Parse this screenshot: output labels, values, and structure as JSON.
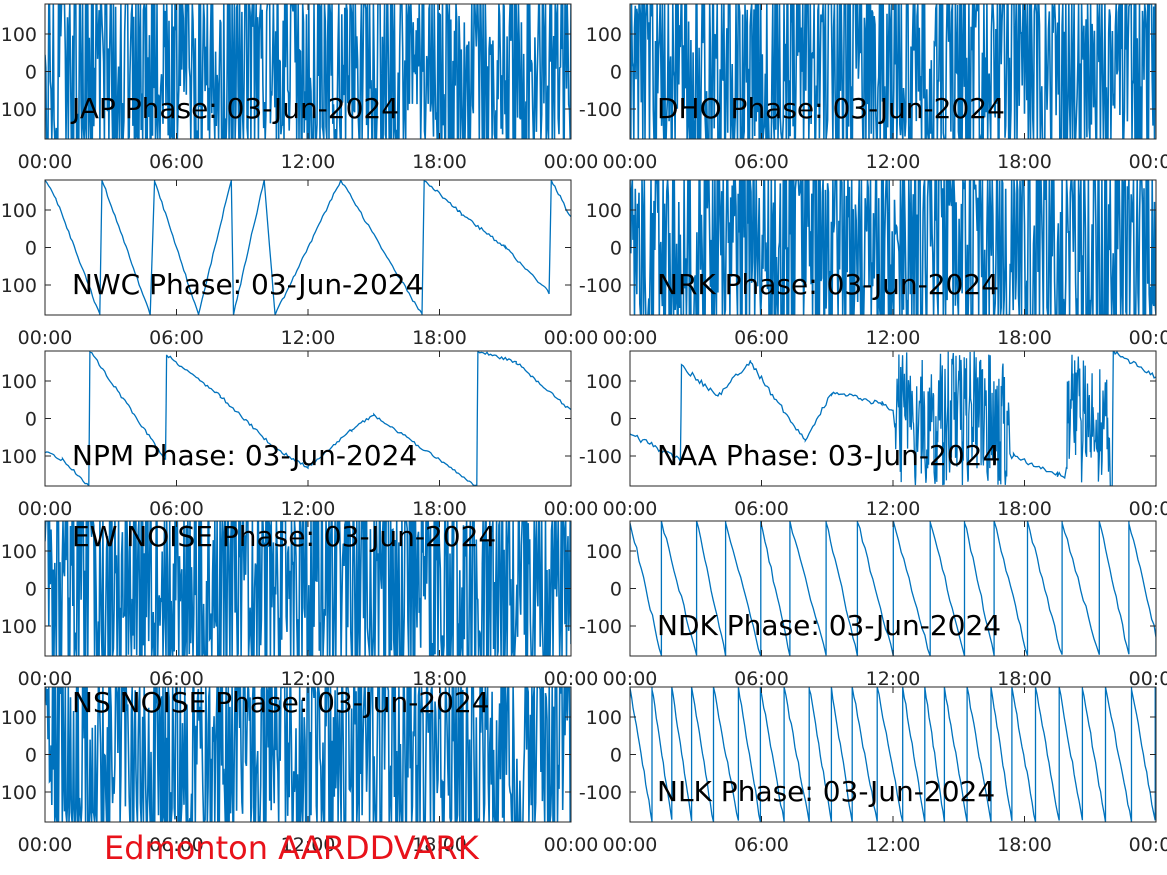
{
  "figure": {
    "caption": "Edmonton AARDDVARK",
    "caption_color": "#e8121a",
    "line_color": "#0072bd",
    "axes_color": "#262626",
    "yticks": [
      -100,
      0,
      100
    ],
    "xticks": [
      "00:00",
      "06:00",
      "12:00",
      "18:00",
      "00:00"
    ]
  },
  "chart_data": [
    {
      "type": "line",
      "label": "JAP Phase: 03-Jun-2024",
      "ylim": [
        -180,
        180
      ],
      "xlim": [
        0,
        24
      ],
      "x": [
        0,
        24
      ],
      "y": [
        0,
        0
      ],
      "pattern": "dense-noise"
    },
    {
      "type": "line",
      "label": "DHO Phase: 03-Jun-2024",
      "ylim": [
        -180,
        180
      ],
      "xlim": [
        0,
        24
      ],
      "x": [
        0,
        24
      ],
      "y": [
        0,
        0
      ],
      "pattern": "dense-noise"
    },
    {
      "type": "line",
      "label": "NWC Phase: 03-Jun-2024",
      "ylim": [
        -180,
        180
      ],
      "xlim": [
        0,
        24
      ],
      "x": [
        0,
        0.5,
        2.5,
        2.6,
        4.8,
        5.0,
        7.0,
        8.5,
        8.6,
        10.0,
        10.5,
        13.5,
        17.2,
        17.3,
        19.0,
        21.0,
        23.0,
        23.1,
        24.0
      ],
      "y": [
        180,
        130,
        -180,
        180,
        -180,
        180,
        -180,
        180,
        -180,
        180,
        -180,
        180,
        -180,
        180,
        90,
        0,
        -120,
        180,
        80
      ],
      "pattern": "sawtooth"
    },
    {
      "type": "line",
      "label": "NRK Phase: 03-Jun-2024",
      "ylim": [
        -180,
        180
      ],
      "xlim": [
        0,
        24
      ],
      "x": [
        0,
        24
      ],
      "y": [
        0,
        0
      ],
      "pattern": "dense-noise"
    },
    {
      "type": "line",
      "label": "NPM Phase: 03-Jun-2024",
      "ylim": [
        -180,
        180
      ],
      "xlim": [
        0,
        24
      ],
      "x": [
        0,
        0.8,
        2.0,
        2.05,
        5.5,
        5.55,
        8.0,
        10.5,
        12.0,
        14.0,
        15.0,
        19.7,
        19.75,
        21.5,
        24.0
      ],
      "y": [
        -90,
        -110,
        -180,
        180,
        -110,
        170,
        60,
        -80,
        -130,
        -30,
        10,
        -180,
        180,
        150,
        20
      ],
      "pattern": "sawtooth"
    },
    {
      "type": "line",
      "label": "NAA Phase: 03-Jun-2024",
      "ylim": [
        -180,
        180
      ],
      "xlim": [
        0,
        24
      ],
      "x": [
        0,
        2.3,
        2.35,
        4.0,
        5.5,
        6.5,
        8.0,
        9.2,
        11.5,
        12.0,
        17.5,
        19.5,
        22.0,
        22.05,
        24.0
      ],
      "y": [
        -40,
        -110,
        140,
        60,
        150,
        60,
        -60,
        70,
        40,
        20,
        -100,
        -150,
        -180,
        180,
        110
      ],
      "pattern": "mixed"
    },
    {
      "type": "line",
      "label": "EW NOISE Phase: 03-Jun-2024",
      "ylim": [
        -180,
        180
      ],
      "xlim": [
        0,
        24
      ],
      "x": [
        0,
        24
      ],
      "y": [
        0,
        0
      ],
      "pattern": "dense-noise"
    },
    {
      "type": "line",
      "label": "NDK Phase: 03-Jun-2024",
      "ylim": [
        -180,
        180
      ],
      "xlim": [
        0,
        24
      ],
      "x": [
        0,
        24
      ],
      "y": [
        130,
        -130
      ],
      "pattern": "sawtooth"
    },
    {
      "type": "line",
      "label": "NS NOISE Phase: 03-Jun-2024",
      "ylim": [
        -180,
        180
      ],
      "xlim": [
        0,
        24
      ],
      "x": [
        0,
        24
      ],
      "y": [
        0,
        0
      ],
      "pattern": "dense-noise"
    },
    {
      "type": "line",
      "label": "NLK Phase: 03-Jun-2024",
      "ylim": [
        -180,
        180
      ],
      "xlim": [
        0,
        24
      ],
      "x": [
        0,
        24
      ],
      "y": [
        150,
        -150
      ],
      "pattern": "sawtooth"
    }
  ]
}
